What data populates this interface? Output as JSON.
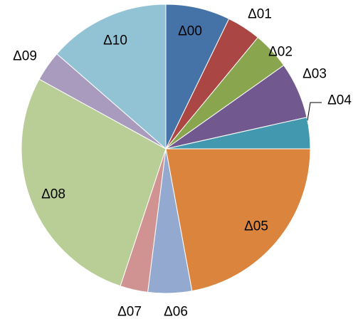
{
  "chart_data": {
    "type": "pie",
    "start_angle_deg": 0,
    "direction": "clockwise",
    "legend": "none",
    "slices": [
      {
        "label": "Δ00",
        "value": 7.2,
        "color": "#4572A7"
      },
      {
        "label": "Δ01",
        "value": 3.8,
        "color": "#AA4643"
      },
      {
        "label": "Δ02",
        "value": 4.2,
        "color": "#89A54E"
      },
      {
        "label": "Δ03",
        "value": 6.3,
        "color": "#71588F"
      },
      {
        "label": "Δ04",
        "value": 3.5,
        "color": "#4198AF"
      },
      {
        "label": "Δ05",
        "value": 22.1,
        "color": "#DB843D"
      },
      {
        "label": "Δ06",
        "value": 4.9,
        "color": "#93A9CF"
      },
      {
        "label": "Δ07",
        "value": 3.1,
        "color": "#D09392"
      },
      {
        "label": "Δ08",
        "value": 27.9,
        "color": "#B9CD96"
      },
      {
        "label": "Δ09",
        "value": 3.4,
        "color": "#A99BBD"
      },
      {
        "label": "Δ10",
        "value": 13.6,
        "color": "#92C3D5"
      }
    ]
  }
}
